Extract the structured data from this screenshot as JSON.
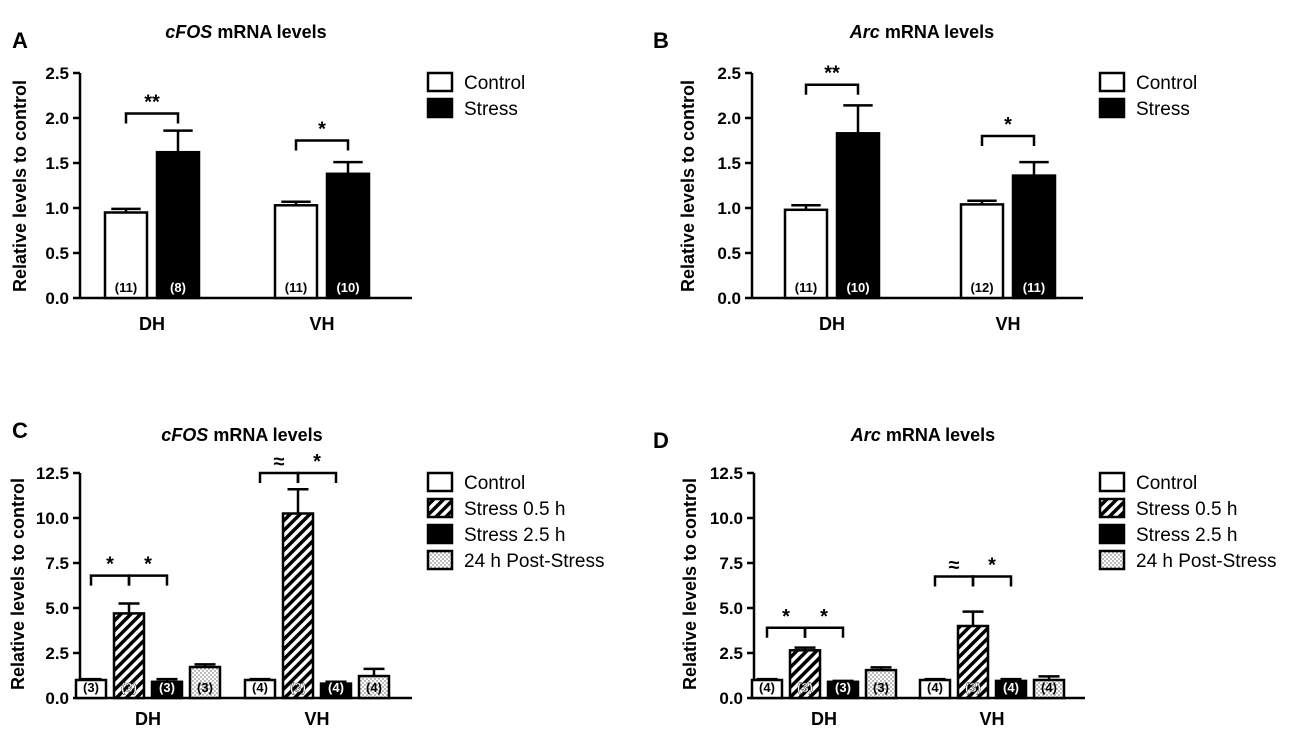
{
  "legend_ab": [
    "Control",
    "Stress"
  ],
  "legend_cd": [
    "Control",
    "Stress 0.5 h",
    "Stress 2.5 h",
    "24 h Post-Stress"
  ],
  "chart_data": [
    {
      "panel": "A",
      "type": "bar",
      "title_italic": "cFOS",
      "title_rest": " mRNA levels",
      "ylabel": "Relative levels to control",
      "ylim": [
        0,
        2.5
      ],
      "yticks": [
        "0.0",
        "0.5",
        "1.0",
        "1.5",
        "2.0",
        "2.5"
      ],
      "categories": [
        "DH",
        "VH"
      ],
      "series": [
        {
          "name": "Control",
          "values": [
            0.95,
            1.03
          ],
          "errors": [
            0.04,
            0.04
          ],
          "n": [
            "(11)",
            "(11)"
          ]
        },
        {
          "name": "Stress",
          "values": [
            1.62,
            1.38
          ],
          "errors": [
            0.24,
            0.13
          ],
          "n": [
            "(8)",
            "(10)"
          ]
        }
      ],
      "significance": [
        {
          "category": 0,
          "from": 0,
          "to": 1,
          "level": 2.05,
          "label": "**"
        },
        {
          "category": 1,
          "from": 0,
          "to": 1,
          "level": 1.75,
          "label": "*"
        }
      ]
    },
    {
      "panel": "B",
      "type": "bar",
      "title_italic": "Arc",
      "title_rest": " mRNA levels",
      "ylabel": "Relative levels to control",
      "ylim": [
        0,
        2.5
      ],
      "yticks": [
        "0.0",
        "0.5",
        "1.0",
        "1.5",
        "2.0",
        "2.5"
      ],
      "categories": [
        "DH",
        "VH"
      ],
      "series": [
        {
          "name": "Control",
          "values": [
            0.98,
            1.04
          ],
          "errors": [
            0.05,
            0.04
          ],
          "n": [
            "(11)",
            "(12)"
          ]
        },
        {
          "name": "Stress",
          "values": [
            1.83,
            1.36
          ],
          "errors": [
            0.31,
            0.15
          ],
          "n": [
            "(10)",
            "(11)"
          ]
        }
      ],
      "significance": [
        {
          "category": 0,
          "from": 0,
          "to": 1,
          "level": 2.37,
          "label": "**"
        },
        {
          "category": 1,
          "from": 0,
          "to": 1,
          "level": 1.8,
          "label": "*"
        }
      ]
    },
    {
      "panel": "C",
      "type": "bar",
      "title_italic": "cFOS",
      "title_rest": " mRNA levels",
      "ylabel": "Relative levels to control",
      "ylim": [
        0,
        12.5
      ],
      "yticks": [
        "0.0",
        "2.5",
        "5.0",
        "7.5",
        "10.0",
        "12.5"
      ],
      "categories": [
        "DH",
        "VH"
      ],
      "series": [
        {
          "name": "Control",
          "values": [
            1.0,
            1.0
          ],
          "errors": [
            0.05,
            0.05
          ],
          "n": [
            "(3)",
            "(4)"
          ]
        },
        {
          "name": "Stress 0.5 h",
          "values": [
            4.7,
            10.25
          ],
          "errors": [
            0.55,
            1.35
          ],
          "n": [
            "(3)",
            "(3)"
          ]
        },
        {
          "name": "Stress 2.5 h",
          "values": [
            0.9,
            0.8
          ],
          "errors": [
            0.15,
            0.1
          ],
          "n": [
            "(3)",
            "(4)"
          ]
        },
        {
          "name": "24 h Post-Stress",
          "values": [
            1.72,
            1.22
          ],
          "errors": [
            0.15,
            0.4
          ],
          "n": [
            "(3)",
            "(4)"
          ]
        }
      ],
      "significance": [
        {
          "category": 0,
          "from": 0,
          "to": 1,
          "level": 6.8,
          "label": "*"
        },
        {
          "category": 0,
          "from": 1,
          "to": 2,
          "level": 6.8,
          "label": "*"
        },
        {
          "category": 1,
          "from": 0,
          "to": 1,
          "level": 12.5,
          "label": "≈"
        },
        {
          "category": 1,
          "from": 1,
          "to": 2,
          "level": 12.5,
          "label": "*"
        }
      ]
    },
    {
      "panel": "D",
      "type": "bar",
      "title_italic": "Arc",
      "title_rest": " mRNA levels",
      "ylabel": "Relative levels to control",
      "ylim": [
        0,
        12.5
      ],
      "yticks": [
        "0.0",
        "2.5",
        "5.0",
        "7.5",
        "10.0",
        "12.5"
      ],
      "categories": [
        "DH",
        "VH"
      ],
      "series": [
        {
          "name": "Control",
          "values": [
            1.0,
            1.0
          ],
          "errors": [
            0.05,
            0.05
          ],
          "n": [
            "(4)",
            "(4)"
          ]
        },
        {
          "name": "Stress 0.5 h",
          "values": [
            2.65,
            4.0
          ],
          "errors": [
            0.15,
            0.8
          ],
          "n": [
            "(3)",
            "(3)"
          ]
        },
        {
          "name": "Stress 2.5 h",
          "values": [
            0.9,
            0.95
          ],
          "errors": [
            0.05,
            0.1
          ],
          "n": [
            "(3)",
            "(4)"
          ]
        },
        {
          "name": "24 h Post-Stress",
          "values": [
            1.55,
            1.0
          ],
          "errors": [
            0.15,
            0.2
          ],
          "n": [
            "(3)",
            "(4)"
          ]
        }
      ],
      "significance": [
        {
          "category": 0,
          "from": 0,
          "to": 1,
          "level": 3.9,
          "label": "*"
        },
        {
          "category": 0,
          "from": 1,
          "to": 2,
          "level": 3.9,
          "label": "*"
        },
        {
          "category": 1,
          "from": 0,
          "to": 1,
          "level": 6.75,
          "label": "≈"
        },
        {
          "category": 1,
          "from": 1,
          "to": 2,
          "level": 6.75,
          "label": "*"
        }
      ]
    }
  ]
}
